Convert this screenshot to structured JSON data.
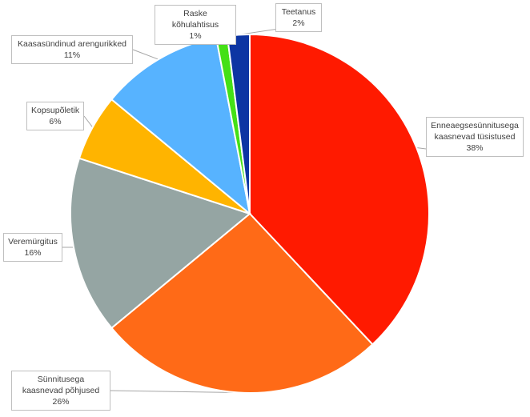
{
  "chart_data": {
    "type": "pie",
    "title": "",
    "slices": [
      {
        "label": "Enneaegsesünnitusega kaasnevad tüsistused",
        "value": 38,
        "display": "38%",
        "color": "#ff1a00"
      },
      {
        "label": "Sünnitusega kaasnevad põhjused",
        "value": 26,
        "display": "26%",
        "color": "#ff6a17"
      },
      {
        "label": "Veremürgitus",
        "value": 16,
        "display": "16%",
        "color": "#95a5a3"
      },
      {
        "label": "Kopsupõletik",
        "value": 6,
        "display": "6%",
        "color": "#ffb400"
      },
      {
        "label": "Kaasasündinud arengurikked",
        "value": 11,
        "display": "11%",
        "color": "#57b3ff"
      },
      {
        "label": "Raske kõhulahtisus",
        "value": 1,
        "display": "1%",
        "color": "#44e016"
      },
      {
        "label": "Teetanus",
        "value": 2,
        "display": "2%",
        "color": "#0d35a3"
      }
    ],
    "legend": "none",
    "data_labels": "callouts"
  }
}
